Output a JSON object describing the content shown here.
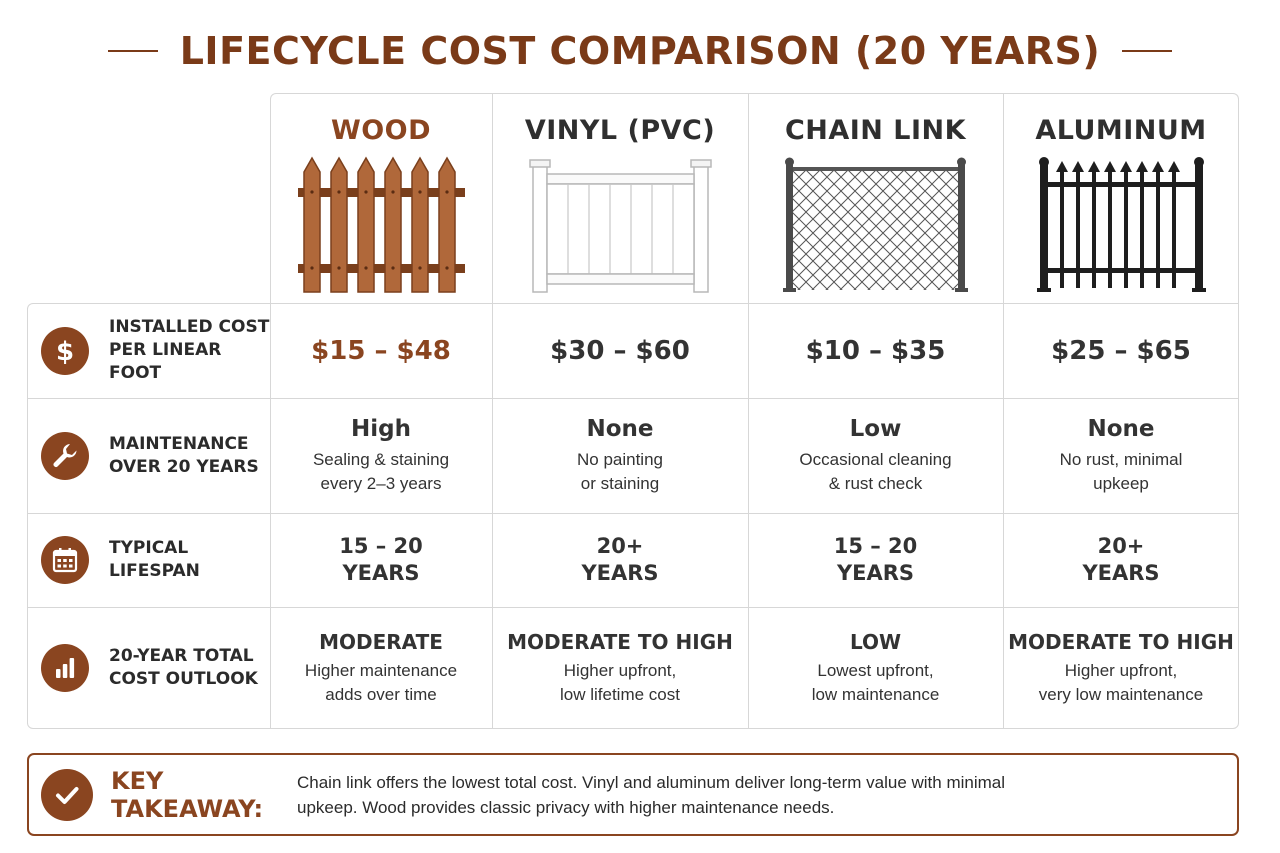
{
  "title": "LIFECYCLE COST COMPARISON (20 YEARS)",
  "colors": {
    "accent": "#8a4520",
    "text": "#2b2b2b",
    "border": "#d7d7d7"
  },
  "columns": [
    {
      "name": "WOOD",
      "fence_icon": "wood-picket-fence-icon"
    },
    {
      "name": "VINYL (PVC)",
      "fence_icon": "vinyl-fence-icon"
    },
    {
      "name": "CHAIN LINK",
      "fence_icon": "chain-link-fence-icon"
    },
    {
      "name": "ALUMINUM",
      "fence_icon": "aluminum-fence-icon"
    }
  ],
  "rows": {
    "cost": {
      "label_line1": "INSTALLED COST",
      "label_line2": "PER LINEAR FOOT",
      "icon": "dollar-icon",
      "values": [
        "$15 – $48",
        "$30 – $60",
        "$10 – $35",
        "$25 – $65"
      ]
    },
    "maintenance": {
      "label_line1": "MAINTENANCE",
      "label_line2": "OVER 20 YEARS",
      "icon": "wrench-icon",
      "levels": [
        "High",
        "None",
        "Low",
        "None"
      ],
      "notes": [
        "Sealing & staining\nevery 2–3 years",
        "No painting\nor staining",
        "Occasional cleaning\n& rust check",
        "No rust, minimal\nupkeep"
      ]
    },
    "lifespan": {
      "label_line1": "TYPICAL",
      "label_line2": "LIFESPAN",
      "icon": "calendar-icon",
      "values": [
        "15 – 20\nYEARS",
        "20+\nYEARS",
        "15 – 20\nYEARS",
        "20+\nYEARS"
      ]
    },
    "outlook": {
      "label_line1": "20-YEAR TOTAL",
      "label_line2": "COST OUTLOOK",
      "icon": "bar-chart-icon",
      "levels": [
        "MODERATE",
        "MODERATE TO HIGH",
        "LOW",
        "MODERATE TO HIGH"
      ],
      "notes": [
        "Higher maintenance\nadds over time",
        "Higher upfront,\nlow lifetime cost",
        "Lowest upfront,\nlow maintenance",
        "Higher upfront,\nvery low maintenance"
      ]
    }
  },
  "takeaway": {
    "label": "KEY TAKEAWAY:",
    "icon": "checkmark-icon",
    "text": "Chain link offers the lowest total cost. Vinyl and aluminum deliver long-term value with minimal upkeep. Wood provides classic privacy with higher maintenance needs."
  }
}
